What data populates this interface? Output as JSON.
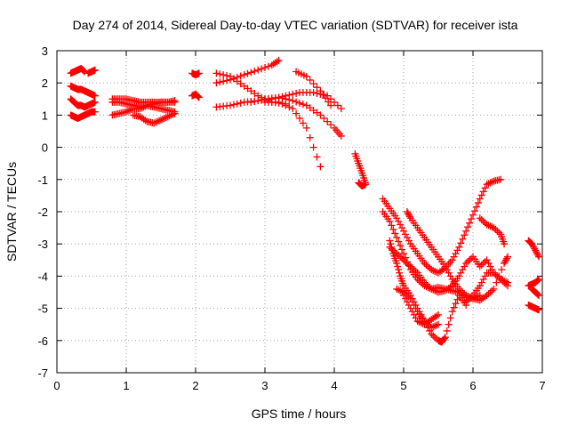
{
  "chart_data": {
    "type": "scatter",
    "title": "Day 274 of 2014, Sidereal Day-to-day VTEC variation (SDTVAR) for receiver ista",
    "xlabel": "GPS time / hours",
    "ylabel": "SDTVAR / TECUs",
    "xlim": [
      0,
      7
    ],
    "ylim": [
      -7,
      3
    ],
    "xticks": [
      0,
      1,
      2,
      3,
      4,
      5,
      6,
      7
    ],
    "yticks": [
      3,
      2,
      1,
      0,
      -1,
      -2,
      -3,
      -4,
      -5,
      -6,
      -7
    ],
    "grid": true,
    "marker": "+",
    "color": "#ff0000",
    "series": [
      {
        "x": [
          0.2,
          0.25,
          0.3,
          0.35,
          0.4
        ],
        "y": [
          2.3,
          2.35,
          2.4,
          2.45,
          2.35
        ]
      },
      {
        "x": [
          0.45,
          0.5,
          0.55
        ],
        "y": [
          2.3,
          2.35,
          2.4
        ]
      },
      {
        "x": [
          0.2,
          0.25,
          0.3,
          0.35,
          0.4,
          0.45,
          0.5,
          0.55
        ],
        "y": [
          1.9,
          1.85,
          1.8,
          1.8,
          1.75,
          1.7,
          1.65,
          1.6
        ]
      },
      {
        "x": [
          0.2,
          0.25,
          0.3,
          0.35,
          0.4,
          0.45,
          0.5,
          0.55
        ],
        "y": [
          1.5,
          1.4,
          1.3,
          1.3,
          1.25,
          1.3,
          1.35,
          1.4
        ]
      },
      {
        "x": [
          0.2,
          0.25,
          0.3,
          0.35,
          0.4,
          0.45,
          0.5,
          0.55
        ],
        "y": [
          1.0,
          0.95,
          0.9,
          0.95,
          1.0,
          1.05,
          1.1,
          1.1
        ]
      },
      {
        "x": [
          0.8,
          0.9,
          1.0,
          1.1,
          1.2,
          1.3,
          1.4,
          1.5,
          1.6,
          1.7
        ],
        "y": [
          1.5,
          1.5,
          1.5,
          1.45,
          1.4,
          1.4,
          1.4,
          1.4,
          1.4,
          1.45
        ]
      },
      {
        "x": [
          0.8,
          0.9,
          1.0,
          1.1,
          1.2,
          1.3,
          1.4,
          1.5,
          1.6,
          1.7
        ],
        "y": [
          1.4,
          1.4,
          1.35,
          1.3,
          1.25,
          1.3,
          1.35,
          1.4,
          1.4,
          1.4
        ]
      },
      {
        "x": [
          0.8,
          0.9,
          1.0,
          1.1,
          1.2,
          1.3,
          1.4,
          1.5,
          1.6,
          1.7
        ],
        "y": [
          1.0,
          1.05,
          1.1,
          1.2,
          1.2,
          1.3,
          1.25,
          1.2,
          1.15,
          1.1
        ]
      },
      {
        "x": [
          1.1,
          1.2,
          1.3,
          1.4,
          1.5,
          1.6,
          1.7
        ],
        "y": [
          1.0,
          0.95,
          0.8,
          0.75,
          0.85,
          0.95,
          1.05
        ]
      },
      {
        "x": [
          1.95,
          2.0,
          2.05
        ],
        "y": [
          2.3,
          2.25,
          2.3
        ]
      },
      {
        "x": [
          1.95,
          2.0,
          2.05
        ],
        "y": [
          1.6,
          1.65,
          1.55
        ]
      },
      {
        "x": [
          2.3,
          2.5,
          2.7,
          2.9,
          3.1,
          3.2
        ],
        "y": [
          2.0,
          2.1,
          2.25,
          2.4,
          2.55,
          2.7
        ]
      },
      {
        "x": [
          2.3,
          2.5,
          2.7,
          2.9,
          3.1,
          3.3
        ],
        "y": [
          2.3,
          2.2,
          1.9,
          1.6,
          1.4,
          1.35
        ]
      },
      {
        "x": [
          2.3,
          2.5,
          2.7,
          2.9,
          3.1,
          3.3,
          3.5,
          3.7,
          3.9,
          4.1
        ],
        "y": [
          1.25,
          1.3,
          1.4,
          1.45,
          1.5,
          1.6,
          1.7,
          1.7,
          1.6,
          1.2
        ]
      },
      {
        "x": [
          2.8,
          3.0,
          3.2,
          3.4,
          3.6,
          3.8,
          4.0,
          4.1
        ],
        "y": [
          1.4,
          1.5,
          1.55,
          1.45,
          1.3,
          1.0,
          0.6,
          0.35
        ]
      },
      {
        "x": [
          3.0,
          3.2,
          3.4,
          3.6,
          3.8
        ],
        "y": [
          1.4,
          1.4,
          1.2,
          0.6,
          -0.6
        ]
      },
      {
        "x": [
          3.45,
          3.6,
          3.8,
          3.95
        ],
        "y": [
          2.35,
          2.2,
          1.75,
          1.3
        ]
      },
      {
        "x": [
          4.3,
          4.35,
          4.4,
          4.45
        ],
        "y": [
          -0.2,
          -0.5,
          -0.8,
          -1.1
        ]
      },
      {
        "x": [
          4.35,
          4.4,
          4.45
        ],
        "y": [
          -1.1,
          -1.2,
          -1.15
        ]
      },
      {
        "x": [
          4.7,
          4.8,
          4.9,
          5.0,
          5.1,
          5.2,
          5.3,
          5.4,
          5.5,
          5.6,
          5.7,
          5.8,
          5.9,
          6.0,
          6.1,
          6.2,
          6.3,
          6.4
        ],
        "y": [
          -1.6,
          -1.9,
          -2.2,
          -2.6,
          -3.0,
          -3.3,
          -3.6,
          -3.8,
          -3.9,
          -3.75,
          -3.5,
          -3.1,
          -2.6,
          -2.1,
          -1.6,
          -1.15,
          -1.05,
          -1.0
        ]
      },
      {
        "x": [
          4.7,
          4.8,
          4.9,
          5.0,
          5.1,
          5.2,
          5.3,
          5.4,
          5.5,
          5.6,
          5.7,
          5.8,
          5.9,
          6.0,
          6.1,
          6.2,
          6.3,
          6.45,
          6.5
        ],
        "y": [
          -2.0,
          -2.3,
          -2.8,
          -3.3,
          -3.8,
          -4.1,
          -4.3,
          -4.4,
          -4.35,
          -4.4,
          -4.45,
          -4.5,
          -4.65,
          -4.7,
          -4.75,
          -4.6,
          -4.4,
          -3.6,
          -3.4
        ]
      },
      {
        "x": [
          4.8,
          4.9,
          5.0,
          5.1,
          5.2,
          5.3,
          5.4,
          5.5,
          5.6,
          5.7,
          5.8,
          5.9,
          6.0,
          6.1,
          6.2,
          6.3,
          6.4,
          6.5
        ],
        "y": [
          -3.1,
          -3.3,
          -3.5,
          -3.7,
          -3.9,
          -4.2,
          -4.4,
          -4.5,
          -4.45,
          -4.3,
          -4.0,
          -3.6,
          -3.4,
          -3.7,
          -3.5,
          -3.9,
          -4.1,
          -4.2
        ]
      },
      {
        "x": [
          5.05,
          5.1,
          5.2,
          5.3,
          5.4,
          5.5,
          5.6,
          5.7,
          5.8,
          5.9,
          6.0,
          6.1
        ],
        "y": [
          -2.0,
          -2.2,
          -2.5,
          -2.8,
          -3.1,
          -3.4,
          -3.7,
          -4.1,
          -4.4,
          -4.6,
          -4.7,
          -4.6
        ]
      },
      {
        "x": [
          4.8,
          4.85,
          4.9,
          4.95,
          5.0,
          5.1,
          5.2,
          5.3,
          5.4,
          5.5
        ],
        "y": [
          -2.9,
          -3.3,
          -3.6,
          -4.0,
          -4.3,
          -4.6,
          -5.0,
          -5.4,
          -5.6,
          -5.5
        ]
      },
      {
        "x": [
          4.9,
          5.0,
          5.1,
          5.2,
          5.3,
          5.4,
          5.5,
          5.55,
          5.6,
          5.7,
          5.8,
          5.9
        ],
        "y": [
          -4.4,
          -4.5,
          -4.7,
          -5.1,
          -5.4,
          -5.8,
          -6.0,
          -6.05,
          -5.9,
          -5.1,
          -4.6,
          -4.9
        ]
      },
      {
        "x": [
          5.0,
          5.1,
          5.2,
          5.3,
          5.4,
          5.5
        ],
        "y": [
          -4.6,
          -5.0,
          -5.4,
          -5.5,
          -5.35,
          -5.2
        ]
      },
      {
        "x": [
          5.9,
          6.0,
          6.1,
          6.2,
          6.3,
          6.4,
          6.5
        ],
        "y": [
          -4.8,
          -4.6,
          -4.3,
          -3.9,
          -3.9,
          -4.1,
          -4.3
        ]
      },
      {
        "x": [
          6.1,
          6.2,
          6.3,
          6.4,
          6.45
        ],
        "y": [
          -2.2,
          -2.4,
          -2.5,
          -2.7,
          -3.0
        ]
      },
      {
        "x": [
          6.8,
          6.85,
          6.9,
          6.95
        ],
        "y": [
          -2.9,
          -3.0,
          -3.2,
          -3.4
        ]
      },
      {
        "x": [
          6.8,
          6.85,
          6.9,
          6.95
        ],
        "y": [
          -4.3,
          -4.25,
          -4.2,
          -4.1
        ]
      },
      {
        "x": [
          6.8,
          6.85,
          6.9,
          6.95
        ],
        "y": [
          -4.9,
          -4.95,
          -5.0,
          -5.05
        ]
      },
      {
        "x": [
          6.85,
          6.9,
          6.95
        ],
        "y": [
          -4.4,
          -4.5,
          -4.6
        ]
      }
    ]
  }
}
